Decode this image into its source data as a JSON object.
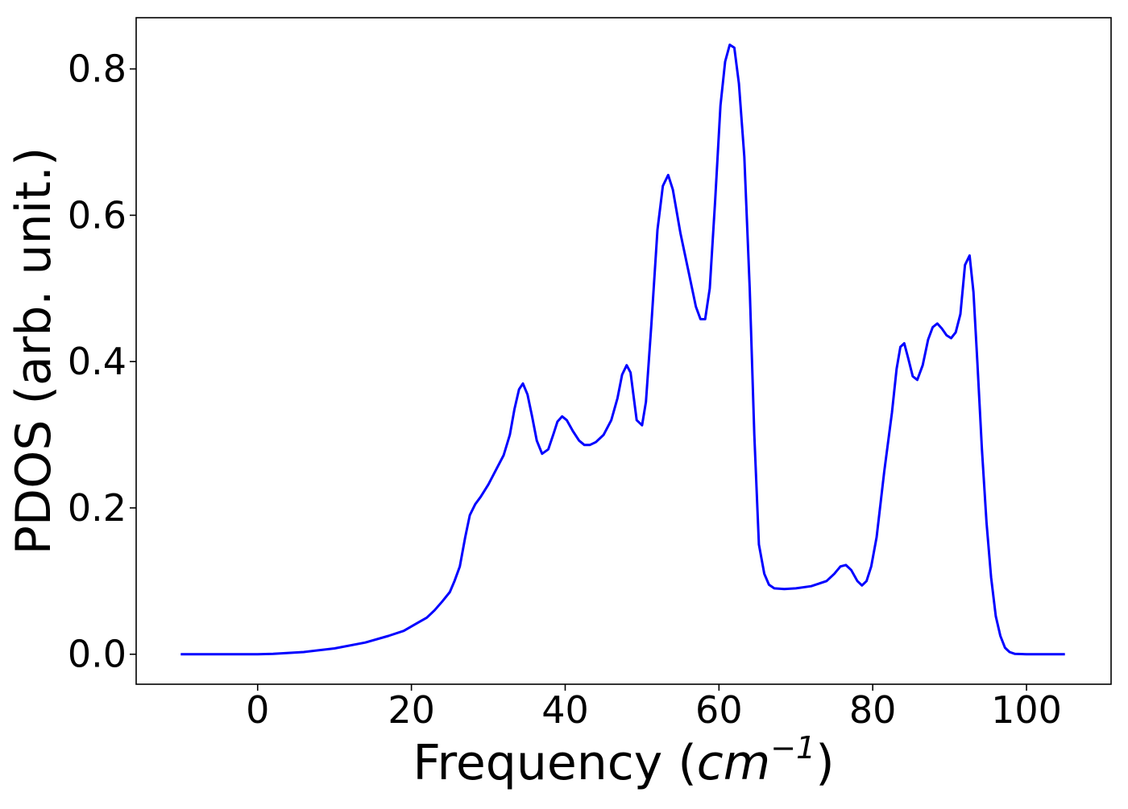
{
  "chart_data": {
    "type": "line",
    "title": "",
    "xlabel": "Frequency (",
    "xlabel_math": "cm",
    "xlabel_sup": "−1",
    "xlabel_close": ")",
    "ylabel": "PDOS (arb. unit.)",
    "xlim": [
      -15.8,
      111.0
    ],
    "ylim": [
      -0.041,
      0.87
    ],
    "xticks": [
      0,
      20,
      40,
      60,
      80,
      100
    ],
    "xtick_labels": [
      "0",
      "20",
      "40",
      "60",
      "80",
      "100"
    ],
    "yticks": [
      0.0,
      0.2,
      0.4,
      0.6,
      0.8
    ],
    "ytick_labels": [
      "0.0",
      "0.2",
      "0.4",
      "0.6",
      "0.8"
    ],
    "grid": false,
    "legend": "none",
    "series": [
      {
        "color": "#0000ff",
        "points": [
          [
            -10.0,
            0.0
          ],
          [
            0.0,
            0.0
          ],
          [
            2.0,
            0.0005
          ],
          [
            6.0,
            0.003
          ],
          [
            10.0,
            0.008
          ],
          [
            14.0,
            0.016
          ],
          [
            17.0,
            0.025
          ],
          [
            19.0,
            0.032
          ],
          [
            20.0,
            0.038
          ],
          [
            21.0,
            0.044
          ],
          [
            22.0,
            0.05
          ],
          [
            23.0,
            0.06
          ],
          [
            24.0,
            0.072
          ],
          [
            25.0,
            0.085
          ],
          [
            25.6,
            0.1
          ],
          [
            26.3,
            0.12
          ],
          [
            27.0,
            0.16
          ],
          [
            27.6,
            0.19
          ],
          [
            28.3,
            0.205
          ],
          [
            29.0,
            0.215
          ],
          [
            30.0,
            0.232
          ],
          [
            31.0,
            0.252
          ],
          [
            32.0,
            0.272
          ],
          [
            32.8,
            0.3
          ],
          [
            33.4,
            0.335
          ],
          [
            34.0,
            0.362
          ],
          [
            34.5,
            0.37
          ],
          [
            35.1,
            0.355
          ],
          [
            35.7,
            0.325
          ],
          [
            36.3,
            0.292
          ],
          [
            37.0,
            0.274
          ],
          [
            37.8,
            0.28
          ],
          [
            38.5,
            0.302
          ],
          [
            39.0,
            0.318
          ],
          [
            39.6,
            0.325
          ],
          [
            40.2,
            0.32
          ],
          [
            41.0,
            0.305
          ],
          [
            41.8,
            0.292
          ],
          [
            42.5,
            0.286
          ],
          [
            43.2,
            0.286
          ],
          [
            44.0,
            0.29
          ],
          [
            45.0,
            0.3
          ],
          [
            46.0,
            0.32
          ],
          [
            46.8,
            0.35
          ],
          [
            47.4,
            0.382
          ],
          [
            48.0,
            0.395
          ],
          [
            48.5,
            0.385
          ],
          [
            49.3,
            0.32
          ],
          [
            50.0,
            0.313
          ],
          [
            50.5,
            0.345
          ],
          [
            51.2,
            0.45
          ],
          [
            52.0,
            0.58
          ],
          [
            52.7,
            0.64
          ],
          [
            53.4,
            0.655
          ],
          [
            54.0,
            0.635
          ],
          [
            55.0,
            0.575
          ],
          [
            56.0,
            0.525
          ],
          [
            57.0,
            0.475
          ],
          [
            57.6,
            0.458
          ],
          [
            58.2,
            0.458
          ],
          [
            58.8,
            0.5
          ],
          [
            59.5,
            0.62
          ],
          [
            60.2,
            0.75
          ],
          [
            60.8,
            0.81
          ],
          [
            61.4,
            0.833
          ],
          [
            62.0,
            0.829
          ],
          [
            62.6,
            0.78
          ],
          [
            63.3,
            0.68
          ],
          [
            64.0,
            0.5
          ],
          [
            64.6,
            0.3
          ],
          [
            65.2,
            0.15
          ],
          [
            65.9,
            0.11
          ],
          [
            66.5,
            0.095
          ],
          [
            67.2,
            0.09
          ],
          [
            68.5,
            0.089
          ],
          [
            70.0,
            0.09
          ],
          [
            72.0,
            0.093
          ],
          [
            74.0,
            0.1
          ],
          [
            75.0,
            0.11
          ],
          [
            75.8,
            0.12
          ],
          [
            76.5,
            0.122
          ],
          [
            77.2,
            0.115
          ],
          [
            78.0,
            0.1
          ],
          [
            78.6,
            0.094
          ],
          [
            79.2,
            0.1
          ],
          [
            79.8,
            0.12
          ],
          [
            80.5,
            0.16
          ],
          [
            81.5,
            0.25
          ],
          [
            82.5,
            0.33
          ],
          [
            83.1,
            0.39
          ],
          [
            83.6,
            0.42
          ],
          [
            84.1,
            0.425
          ],
          [
            84.6,
            0.405
          ],
          [
            85.2,
            0.38
          ],
          [
            85.8,
            0.375
          ],
          [
            86.5,
            0.395
          ],
          [
            87.2,
            0.43
          ],
          [
            87.8,
            0.447
          ],
          [
            88.4,
            0.452
          ],
          [
            89.0,
            0.445
          ],
          [
            89.6,
            0.436
          ],
          [
            90.2,
            0.432
          ],
          [
            90.8,
            0.44
          ],
          [
            91.4,
            0.465
          ],
          [
            92.0,
            0.532
          ],
          [
            92.6,
            0.545
          ],
          [
            93.1,
            0.495
          ],
          [
            93.6,
            0.4
          ],
          [
            94.2,
            0.28
          ],
          [
            94.8,
            0.18
          ],
          [
            95.4,
            0.105
          ],
          [
            96.0,
            0.052
          ],
          [
            96.6,
            0.025
          ],
          [
            97.2,
            0.009
          ],
          [
            97.8,
            0.003
          ],
          [
            98.5,
            0.0005
          ],
          [
            100.0,
            0.0
          ],
          [
            105.0,
            0.0
          ]
        ]
      }
    ]
  }
}
